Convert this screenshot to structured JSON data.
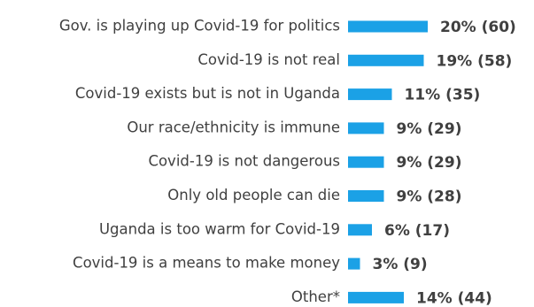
{
  "chart_data": {
    "type": "bar",
    "orientation": "horizontal",
    "categories": [
      "Gov. is playing up Covid-19 for politics",
      "Covid-19 is not real",
      "Covid-19 exists but is not in Uganda",
      "Our race/ethnicity is immune",
      "Covid-19 is not dangerous",
      "Only old people can die",
      "Uganda is too warm for Covid-19",
      "Covid-19 is a means to make money",
      "Other*"
    ],
    "values": [
      20,
      19,
      11,
      9,
      9,
      9,
      6,
      3,
      14
    ],
    "value_labels": [
      "20% (60)",
      "19% (58)",
      "11% (35)",
      "9% (29)",
      "9% (29)",
      "9% (28)",
      "6% (17)",
      "3% (9)",
      "14% (44)"
    ],
    "color": "#1ba1e6"
  }
}
